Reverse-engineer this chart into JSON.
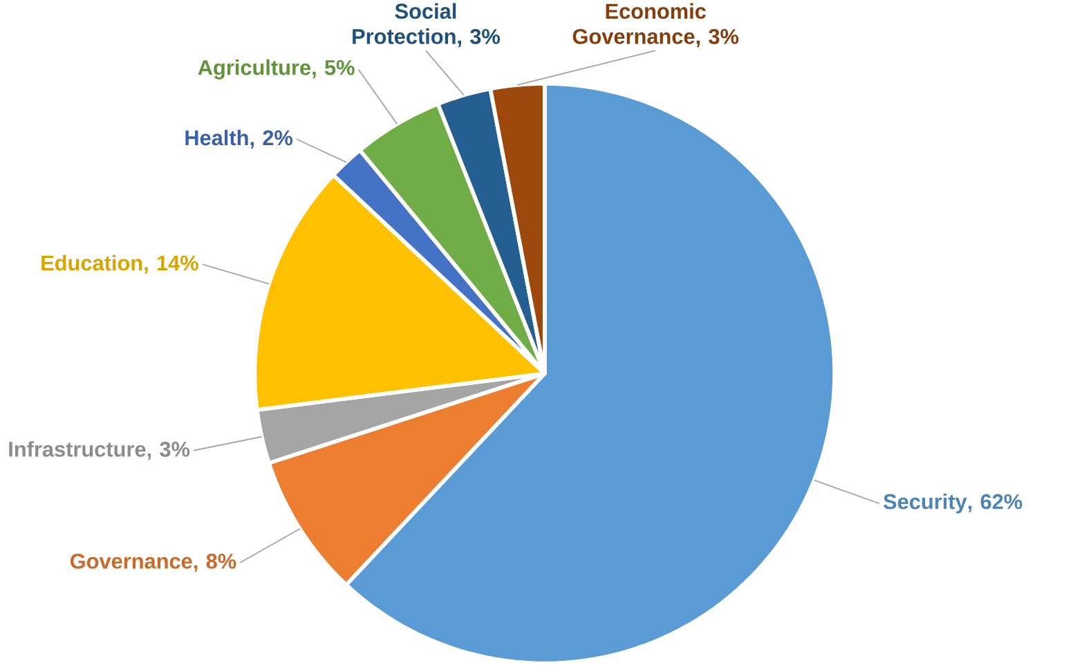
{
  "chart_data": {
    "type": "pie",
    "data_labels": true,
    "categories": [
      "Security",
      "Governance",
      "Infrastructure",
      "Education",
      "Health",
      "Agriculture",
      "Social Protection",
      "Economic Governance"
    ],
    "values": [
      62,
      8,
      3,
      14,
      2,
      5,
      3,
      3
    ],
    "value_labels": [
      ", 62%",
      ", 8%",
      ", 3%",
      ", 14%",
      ", 2%",
      ", 5%",
      ", 3%",
      ", 3%"
    ],
    "colors": [
      "#5b9bd5",
      "#ed7d31",
      "#a5a5a5",
      "#ffc000",
      "#4472c4",
      "#70ad47",
      "#255e91",
      "#9e480e"
    ]
  }
}
